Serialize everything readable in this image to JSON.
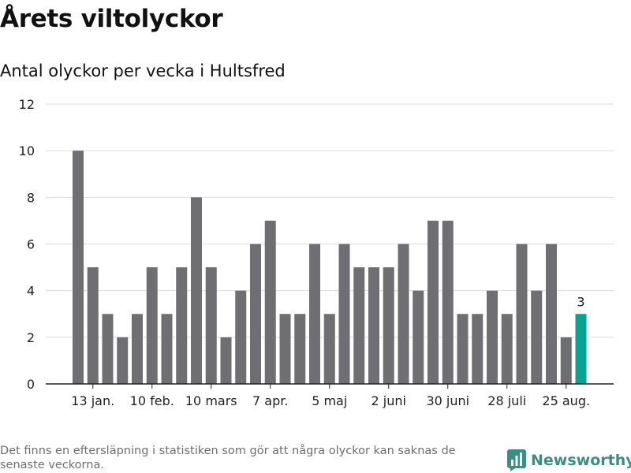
{
  "header": {
    "title": "Årets viltolyckor",
    "subtitle": "Antal olyckor per vecka i Hultsfred"
  },
  "footer": {
    "note": "Det finns en eftersläpning i statistiken som gör att några olyckor kan saknas de senaste veckorna.",
    "brand": "Newsworthy",
    "brand_icon": "bar-chart-icon"
  },
  "colors": {
    "bar": "#6e6e73",
    "highlight": "#0aa393",
    "grid": "#dcdcdc",
    "axis": "#222222",
    "text": "#222222"
  },
  "chart_data": {
    "type": "bar",
    "title": "Antal olyckor per vecka i Hultsfred",
    "xlabel": "",
    "ylabel": "",
    "ylim": [
      0,
      12
    ],
    "yticks": [
      0,
      2,
      4,
      6,
      8,
      10,
      12
    ],
    "grid": true,
    "legend": "none",
    "values": [
      10,
      5,
      3,
      2,
      3,
      5,
      3,
      5,
      8,
      5,
      2,
      4,
      6,
      7,
      3,
      3,
      6,
      3,
      6,
      5,
      5,
      5,
      6,
      4,
      7,
      7,
      3,
      3,
      4,
      3,
      6,
      4,
      6,
      2,
      3
    ],
    "x_tick_labels": [
      {
        "index": 1,
        "label": "13 jan."
      },
      {
        "index": 5,
        "label": "10 feb."
      },
      {
        "index": 9,
        "label": "10 mars"
      },
      {
        "index": 13,
        "label": "7 apr."
      },
      {
        "index": 17,
        "label": "5 maj"
      },
      {
        "index": 21,
        "label": "2 juni"
      },
      {
        "index": 25,
        "label": "30 juni"
      },
      {
        "index": 29,
        "label": "28 juli"
      },
      {
        "index": 33,
        "label": "25 aug."
      }
    ],
    "highlighted_index": 34,
    "data_labels": [
      {
        "index": 34,
        "label": "3"
      }
    ]
  }
}
